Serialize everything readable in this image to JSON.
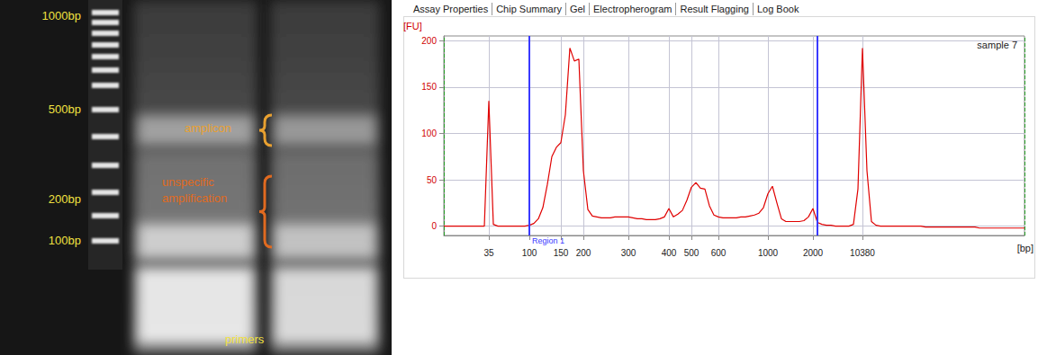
{
  "gel": {
    "ladder": [
      "1000bp",
      "500bp",
      "200bp",
      "100bp"
    ],
    "amplicon": "amplicon",
    "unspecific": "unspecific amplification",
    "primers": "primers"
  },
  "tabs": [
    "Assay Properties",
    "Chip Summary",
    "Gel",
    "Electropherogram",
    "Result Flagging",
    "Log Book"
  ],
  "chart_data": {
    "type": "line",
    "title": "sample 7",
    "x_label": "[bp]",
    "y_label": "[FU]",
    "categories": [
      null,
      null,
      null,
      null,
      null,
      null,
      null,
      null,
      null,
      null,
      35,
      null,
      null,
      null,
      null,
      null,
      null,
      null,
      null,
      100,
      null,
      null,
      null,
      null,
      null,
      null,
      150,
      null,
      null,
      null,
      null,
      200,
      null,
      null,
      null,
      null,
      null,
      null,
      null,
      null,
      null,
      300,
      null,
      null,
      null,
      null,
      null,
      null,
      null,
      null,
      400,
      null,
      null,
      null,
      null,
      500,
      null,
      null,
      null,
      null,
      null,
      600,
      null,
      null,
      null,
      null,
      null,
      null,
      null,
      null,
      null,
      null,
      1000,
      null,
      null,
      null,
      null,
      null,
      null,
      null,
      null,
      null,
      2000,
      null,
      null,
      null,
      null,
      null,
      null,
      null,
      null,
      null,
      null,
      10380,
      null,
      null,
      null,
      null,
      null,
      null,
      null,
      null,
      null,
      null,
      null,
      null,
      null,
      null,
      null,
      null,
      null,
      null,
      null,
      null,
      null,
      null,
      null,
      null,
      null,
      null,
      null,
      null,
      null,
      null,
      null,
      null,
      null,
      null,
      null,
      null
    ],
    "values": [
      0,
      0,
      0,
      0,
      0,
      0,
      0,
      0,
      0,
      0,
      135,
      2,
      0,
      0,
      0,
      0,
      0,
      0,
      0,
      1,
      3,
      8,
      20,
      45,
      75,
      85,
      90,
      120,
      192,
      178,
      180,
      60,
      18,
      11,
      10,
      9,
      9,
      9,
      10,
      10,
      10,
      10,
      9,
      8,
      8,
      7,
      7,
      7,
      8,
      10,
      19,
      10,
      13,
      17,
      28,
      42,
      47,
      41,
      40,
      22,
      12,
      10,
      9,
      9,
      9,
      9,
      10,
      10,
      11,
      12,
      14,
      20,
      35,
      43,
      25,
      8,
      5,
      5,
      5,
      5,
      6,
      10,
      19,
      4,
      2,
      1,
      1,
      0,
      0,
      0,
      0,
      2,
      40,
      192,
      60,
      5,
      1,
      0,
      0,
      0,
      0,
      0,
      0,
      0,
      0,
      0,
      0,
      -1,
      -1,
      -1,
      -1,
      -1,
      -1,
      -1,
      -1,
      -1,
      -1,
      -1,
      -1,
      -2,
      -2,
      -2,
      -2,
      -2,
      -2,
      -2,
      -2,
      -2,
      -2,
      -2
    ],
    "color": "#e00000",
    "ylim": [
      -10,
      205
    ],
    "yticks": [
      0,
      50,
      100,
      150,
      200
    ],
    "grid": true,
    "region": {
      "label": "Region 1",
      "start": 19,
      "end": 83
    }
  }
}
